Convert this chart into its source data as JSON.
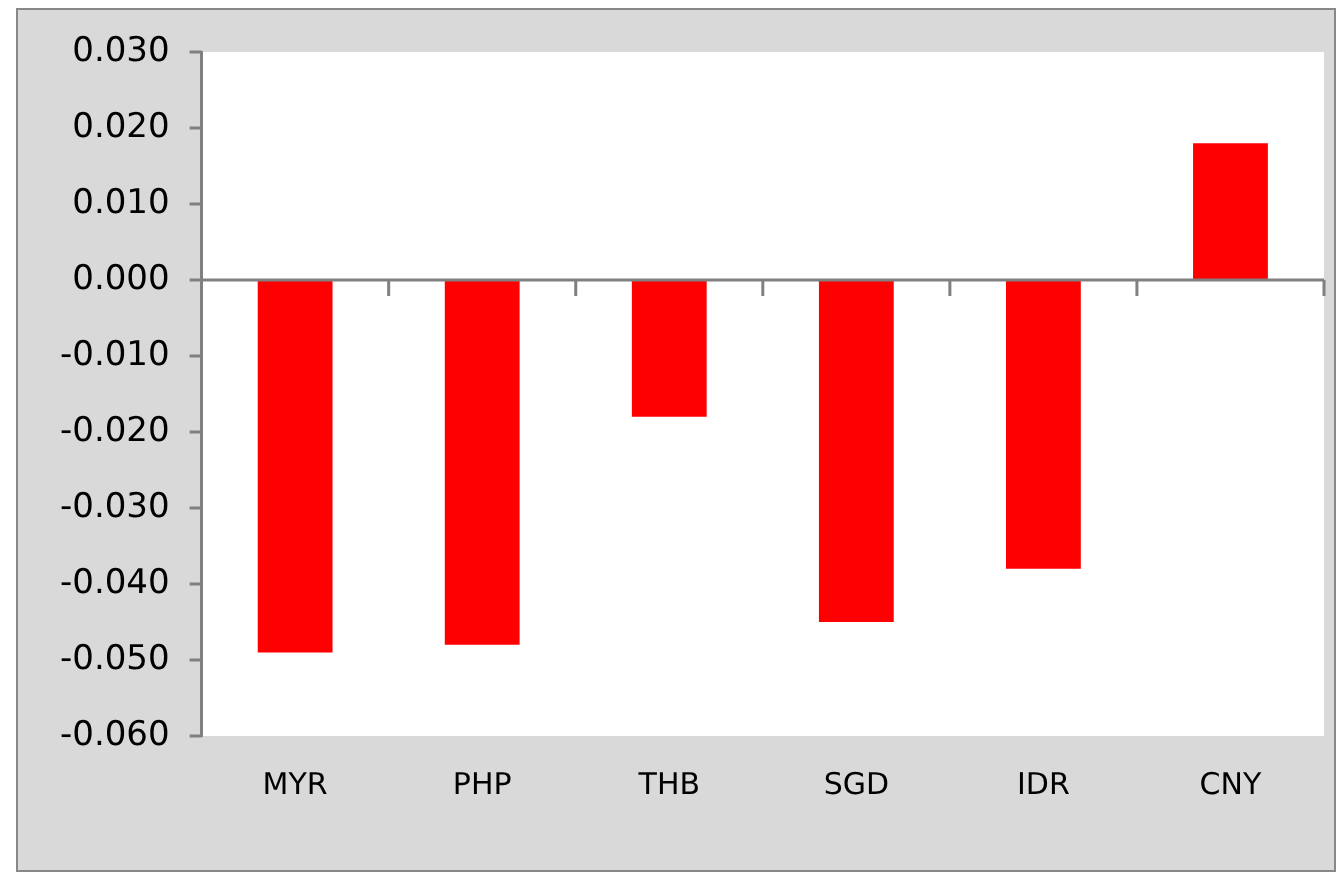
{
  "chart_data": {
    "type": "bar",
    "categories": [
      "MYR",
      "PHP",
      "THB",
      "SGD",
      "IDR",
      "CNY"
    ],
    "values": [
      -0.049,
      -0.048,
      -0.018,
      -0.045,
      -0.038,
      0.018
    ],
    "color": "#ff0000",
    "ylim": [
      -0.06,
      0.03
    ],
    "yticks": [
      {
        "value": -0.06,
        "label": "-0.060"
      },
      {
        "value": -0.05,
        "label": "-0.050"
      },
      {
        "value": -0.04,
        "label": "-0.040"
      },
      {
        "value": -0.03,
        "label": "-0.030"
      },
      {
        "value": -0.02,
        "label": "-0.020"
      },
      {
        "value": -0.01,
        "label": "-0.010"
      },
      {
        "value": 0,
        "label": "0.000"
      },
      {
        "value": 0.01,
        "label": "0.010"
      },
      {
        "value": 0.02,
        "label": "0.020"
      },
      {
        "value": 0.03,
        "label": "0.030"
      }
    ],
    "legend": false
  }
}
